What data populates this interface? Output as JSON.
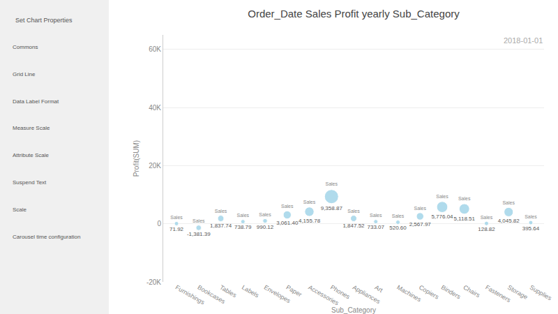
{
  "chart_data": {
    "type": "bubble",
    "title": "Order_Date Sales Profit yearly Sub_Category",
    "xlabel": "Sub_Category",
    "ylabel": "Profit(SUM)",
    "annotations": [
      "2018-01-01"
    ],
    "sidebar": [
      "Set Chart Properties",
      "Commons",
      "Grid Line",
      "Data Label Format",
      "Measure Scale",
      "Attribute Scale",
      "Suspend Text",
      "Scale",
      "Carousel time configuration"
    ],
    "categories": [
      "Furnishings",
      "Bookcases",
      "Tables",
      "Labels",
      "Envelopes",
      "Paper",
      "Accessories",
      "Phones",
      "Appliances",
      "Art",
      "Machines",
      "Copiers",
      "Binders",
      "Chairs",
      "Fasteners",
      "Storage",
      "Supplies"
    ],
    "series": [
      {
        "name": "Sales",
        "color": "#a8d8ea",
        "values": [
          71.92,
          -1381.39,
          1837.74,
          738.79,
          990.12,
          3061.4,
          4155.78,
          9358.87,
          1847.52,
          733.07,
          520.6,
          2567.97,
          5776.04,
          5118.51,
          128.82,
          4045.82,
          395.64
        ],
        "value_labels": [
          "71.92",
          "-1,381.39",
          "1,837.74",
          "738.79",
          "990.12",
          "3,061.40",
          "4,155.78",
          "9,358.87",
          "1,847.52",
          "733.07",
          "520.60",
          "2,567.97",
          "5,776.04",
          "5,118.51",
          "128.82",
          "4,045.82",
          "395.64"
        ],
        "sizes": [
          71.92,
          1381.39,
          1837.74,
          738.79,
          990.12,
          3061.4,
          4155.78,
          9358.87,
          1847.52,
          733.07,
          520.6,
          2567.97,
          5776.04,
          5118.51,
          128.82,
          4045.82,
          395.64
        ]
      }
    ],
    "ylim": [
      -20000,
      65000
    ],
    "yticks": [
      {
        "value": -20000,
        "label": "-20K"
      },
      0,
      {
        "value": 20000,
        "label": "20K"
      },
      {
        "value": 40000,
        "label": "40K"
      },
      {
        "value": 60000,
        "label": "60K"
      }
    ],
    "grid": true,
    "data_labels": true
  }
}
